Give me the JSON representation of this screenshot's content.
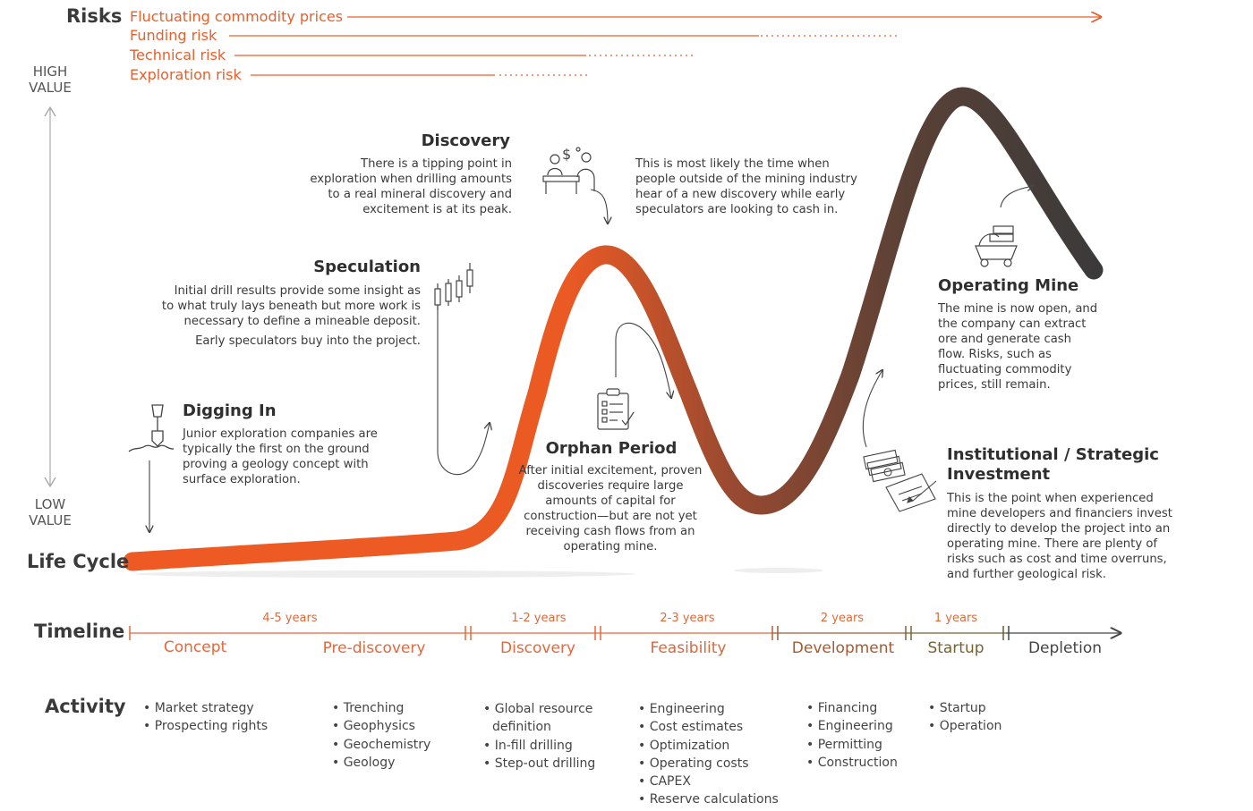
{
  "risks": {
    "heading": "Risks",
    "items": [
      "Fluctuating commodity prices",
      "Funding risk",
      "Technical risk",
      "Exploration risk"
    ]
  },
  "value_axis": {
    "high": "HIGH VALUE",
    "low": "LOW VALUE"
  },
  "row_labels": {
    "life_cycle": "Life Cycle",
    "timeline": "Timeline",
    "activity": "Activity"
  },
  "stages": {
    "digging_in": {
      "title": "Digging In",
      "text": "Junior exploration companies are typically the first on the ground proving a geology concept with surface exploration."
    },
    "speculation": {
      "title": "Speculation",
      "text": "Initial drill results provide some insight as to what truly lays beneath but more work is necessary to define a mineable deposit.",
      "text2": "Early speculators buy into the project."
    },
    "discovery": {
      "title": "Discovery",
      "text": "There is a tipping point in exploration when drilling amounts to a real mineral discovery and excitement is at its peak.",
      "side_text": "This is most likely the time when people outside of the mining industry hear of a new discovery while early speculators are looking to cash in."
    },
    "orphan": {
      "title": "Orphan Period",
      "text": "After initial excitement, proven discoveries require large amounts of capital for construction—but are not yet receiving cash flows from an operating mine."
    },
    "institutional": {
      "title": "Institutional / Strategic Investment",
      "text": "This is the point when experienced mine developers and financiers invest directly to develop the project into an operating mine. There are plenty of risks such as cost and time overruns, and further geological risk."
    },
    "operating": {
      "title": "Operating Mine",
      "text": "The mine is now open, and the company can extract ore and generate cash flow. Risks, such as fluctuating commodity prices, still remain."
    }
  },
  "timeline": {
    "years": [
      "4-5 years",
      "1-2 years",
      "2-3 years",
      "2 years",
      "1 years"
    ],
    "phases": [
      {
        "label": "Concept",
        "color": "#e8663a"
      },
      {
        "label": "Pre-discovery",
        "color": "#e8663a"
      },
      {
        "label": "Discovery",
        "color": "#e8663a"
      },
      {
        "label": "Feasibility",
        "color": "#d8673e"
      },
      {
        "label": "Development",
        "color": "#a45a33"
      },
      {
        "label": "Startup",
        "color": "#7a6230"
      },
      {
        "label": "Depletion",
        "color": "#444444"
      }
    ]
  },
  "activity": [
    [
      "Market strategy",
      "Prospecting rights"
    ],
    [
      "Trenching",
      "Geophysics",
      "Geochemistry",
      "Geology"
    ],
    [
      "Global resource definition",
      "In-fill drilling",
      "Step-out drilling"
    ],
    [
      "Engineering",
      "Cost estimates",
      "Optimization",
      "Operating costs",
      "CAPEX",
      "Reserve calculations"
    ],
    [
      "Financing",
      "Engineering",
      "Permitting",
      "Construction"
    ],
    [
      "Startup",
      "Operation"
    ]
  ],
  "colors": {
    "accent": "#e85f2c",
    "curve_start": "#ee5b26",
    "curve_end": "#3a3a3a",
    "text": "#333333"
  },
  "icons": [
    "shovel-icon",
    "candlestick-chart-icon",
    "people-meeting-icon",
    "clipboard-checklist-icon",
    "money-contract-icon",
    "mine-cart-icon"
  ]
}
